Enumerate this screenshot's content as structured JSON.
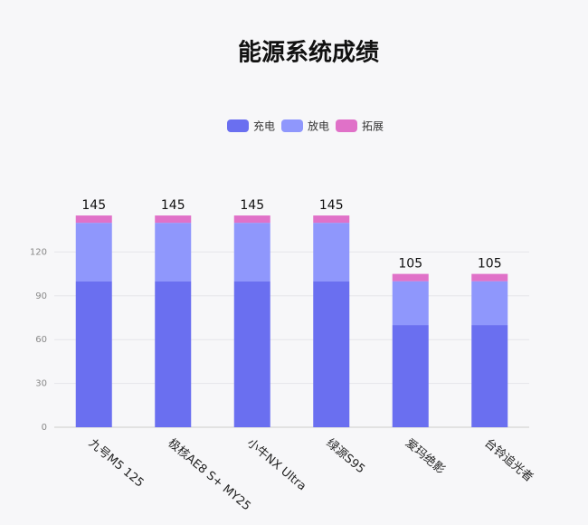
{
  "chart_data": {
    "type": "stacked_bar",
    "title": "能源系统成绩",
    "categories": [
      "九号M5 125",
      "极核AE8 S+ MY25",
      "小牛NX Ultra",
      "绿源S95",
      "爱玛绝影",
      "台铃追光者"
    ],
    "series": [
      {
        "name": "充电",
        "color": "#6a6ff0",
        "values": [
          100,
          100,
          100,
          100,
          70,
          70
        ]
      },
      {
        "name": "放电",
        "color": "#8f97fc",
        "values": [
          40,
          40,
          40,
          40,
          30,
          30
        ]
      },
      {
        "name": "拓展",
        "color": "#e071c8",
        "values": [
          5,
          5,
          5,
          5,
          5,
          5
        ]
      }
    ],
    "totals": [
      145,
      145,
      145,
      145,
      105,
      105
    ],
    "ylim": [
      0,
      150
    ],
    "yticks": [
      0,
      30,
      60,
      90,
      120
    ],
    "grid": true,
    "legend": "top"
  }
}
